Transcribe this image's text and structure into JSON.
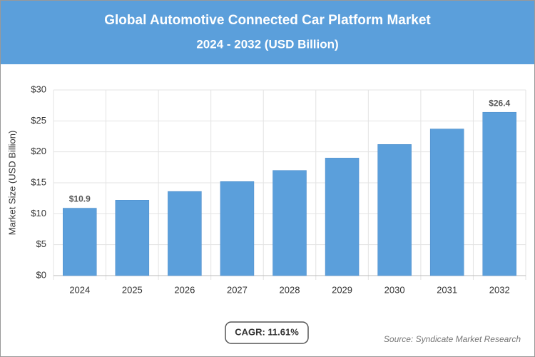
{
  "chart_data": {
    "type": "bar",
    "title": "Global Automotive Connected Car Platform Market",
    "subtitle": "2024 - 2032 (USD Billion)",
    "y_label": "Market Size (USD Billion)",
    "categories": [
      "2024",
      "2025",
      "2026",
      "2027",
      "2028",
      "2029",
      "2030",
      "2031",
      "2032"
    ],
    "values": [
      10.9,
      12.2,
      13.6,
      15.2,
      17.0,
      19.0,
      21.2,
      23.7,
      26.4
    ],
    "value_labels": [
      "$10.9",
      null,
      null,
      null,
      null,
      null,
      null,
      null,
      "$26.4"
    ],
    "color": "#5b9fdb",
    "ylim": [
      0,
      30
    ],
    "yticks": [
      {
        "value": 0,
        "label": "$0"
      },
      {
        "value": 5,
        "label": "$5"
      },
      {
        "value": 10,
        "label": "$10"
      },
      {
        "value": 15,
        "label": "$15"
      },
      {
        "value": 20,
        "label": "$20"
      },
      {
        "value": 25,
        "label": "$25"
      },
      {
        "value": 30,
        "label": "$30"
      }
    ],
    "grid": true,
    "cagr": "CAGR: 11.61%",
    "source": "Source: Syndicate Market Research"
  }
}
